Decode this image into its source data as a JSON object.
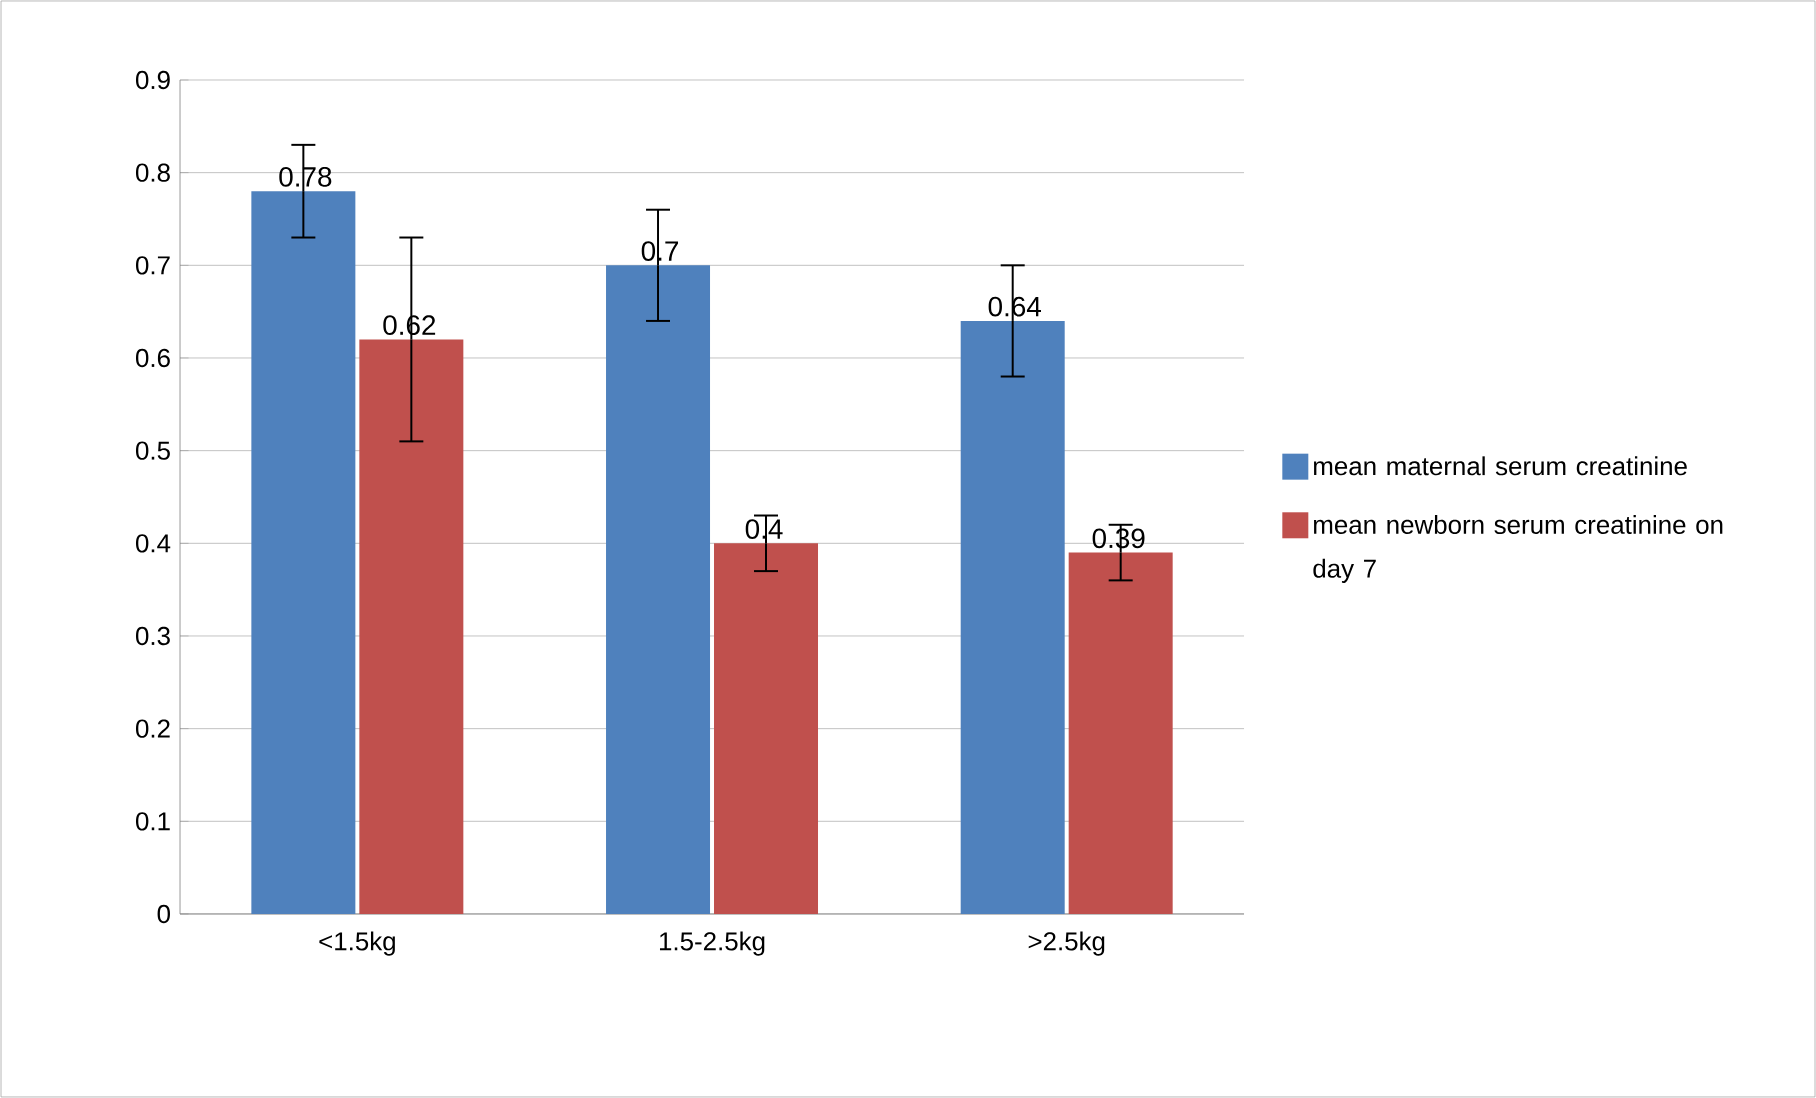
{
  "chart_data": {
    "type": "bar",
    "categories": [
      "<1.5kg",
      "1.5-2.5kg",
      ">2.5kg"
    ],
    "series": [
      {
        "name": "mean maternal serum creatinine",
        "color": "#4f81bd",
        "values": [
          0.78,
          0.7,
          0.64
        ],
        "errors": [
          0.05,
          0.06,
          0.06
        ]
      },
      {
        "name": "mean newborn serum creatinine on day 7",
        "color": "#c0504d",
        "values": [
          0.62,
          0.4,
          0.39
        ],
        "errors": [
          0.11,
          0.03,
          0.03
        ]
      }
    ],
    "ylim": [
      0,
      0.9
    ],
    "yticks": [
      0,
      0.1,
      0.2,
      0.3,
      0.4,
      0.5,
      0.6,
      0.7,
      0.8,
      0.9
    ],
    "grid": "y",
    "legend": "right",
    "data_labels": true
  }
}
